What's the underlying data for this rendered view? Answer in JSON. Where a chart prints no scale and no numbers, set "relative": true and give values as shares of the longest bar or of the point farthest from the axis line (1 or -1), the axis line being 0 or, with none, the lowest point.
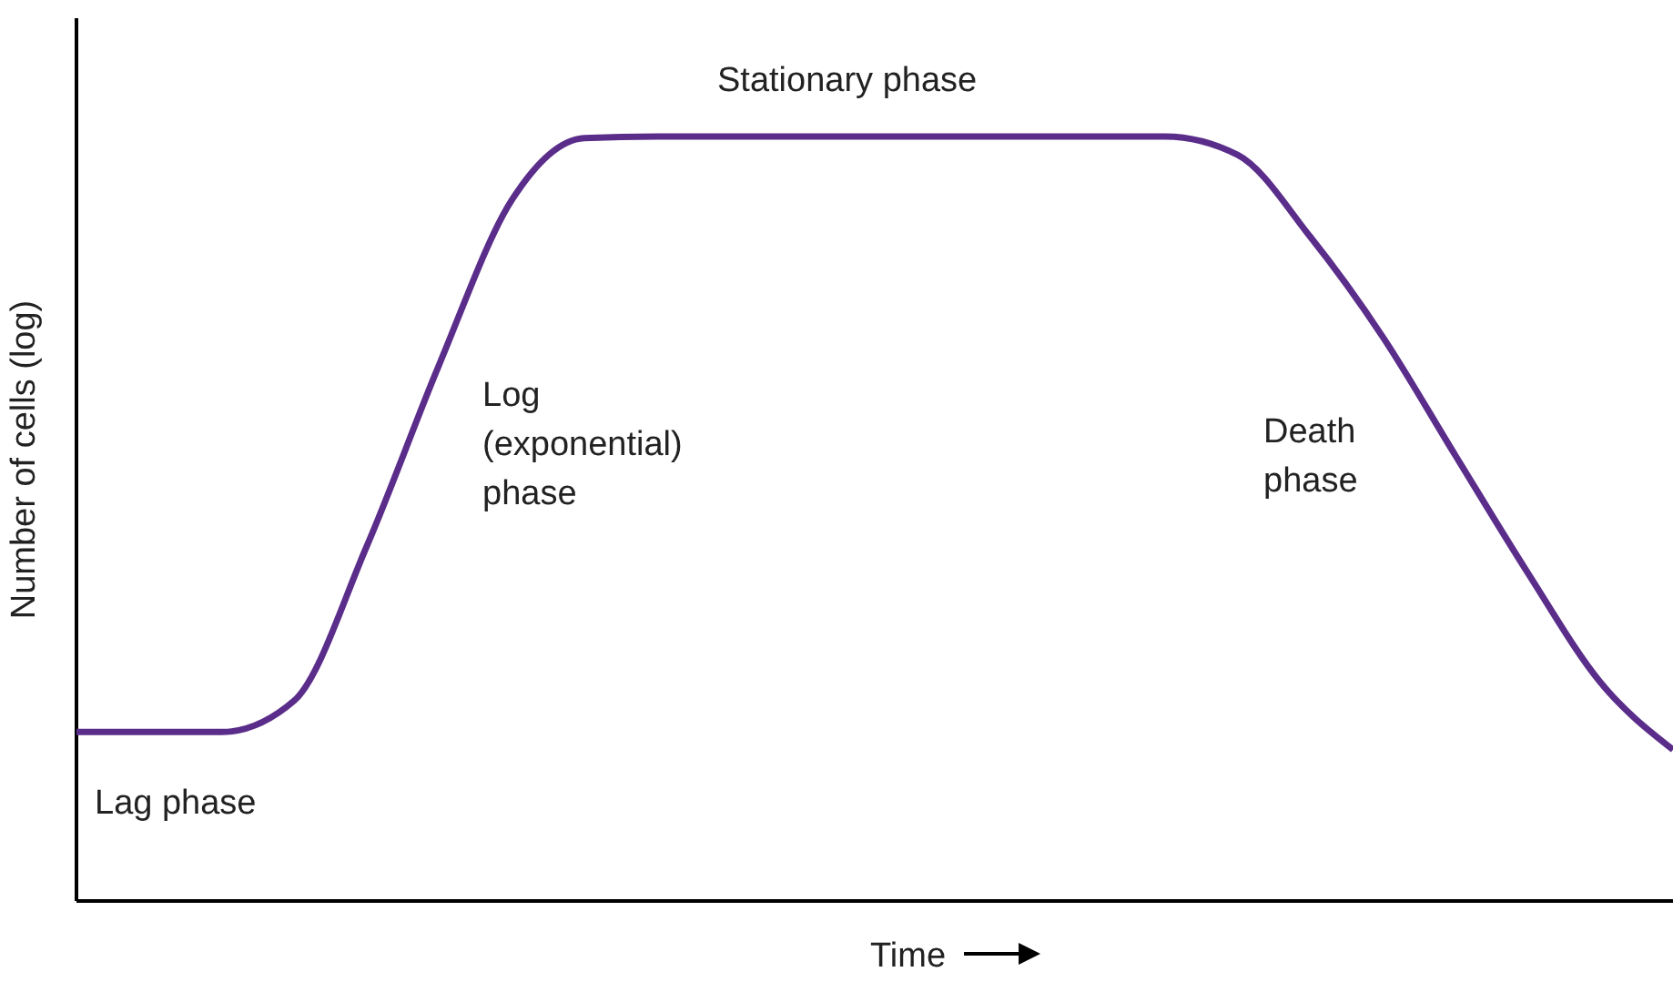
{
  "chart_data": {
    "type": "line",
    "relative": true,
    "xlabel": "Time",
    "ylabel": "Number of cells (log)",
    "categories": [
      null,
      null,
      null,
      null,
      null,
      null,
      null,
      null,
      null,
      null,
      null,
      null,
      null,
      null,
      null,
      null,
      null,
      null,
      null,
      null,
      null,
      null,
      null
    ],
    "series": [
      {
        "color": "#5b2d8a",
        "values": [
          0.221,
          0.221,
          0.221,
          0.262,
          0.464,
          0.702,
          0.917,
          0.998,
          1,
          1,
          1,
          1,
          1,
          1,
          1,
          1,
          0.976,
          0.869,
          0.738,
          0.583,
          0.429,
          0.286,
          0.198
        ]
      }
    ],
    "annotations": [
      "Stationary phase",
      "Log\n(exponential)\nphase",
      "Death\nphase",
      "Lag phase"
    ],
    "marker": "none",
    "line_style": "solid"
  }
}
